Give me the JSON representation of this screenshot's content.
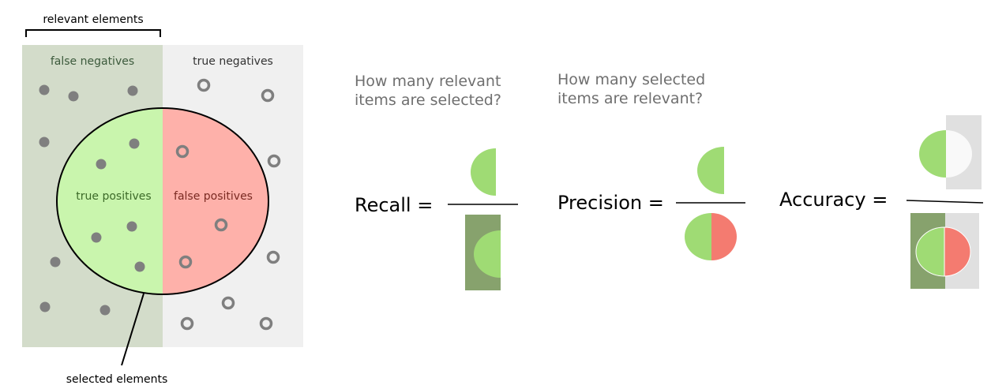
{
  "labels": {
    "relevant_elements": "relevant elements",
    "selected_elements": "selected elements",
    "false_negatives": "false negatives",
    "true_negatives": "true negatives",
    "true_positives": "true positives",
    "false_positives": "false positives"
  },
  "questions": {
    "recall_line1": "How many relevant",
    "recall_line2": "items are selected?",
    "precision_line1": "How many selected",
    "precision_line2": "items are relevant?"
  },
  "formulas": {
    "recall": "Recall =",
    "precision": "Precision =",
    "accuracy": "Accuracy ="
  },
  "colors": {
    "fn_region": "#d3dcca",
    "tn_region": "#f0f0f0",
    "tp": "#c9f5ad",
    "fp": "#feb1aa",
    "tp_icon": "#9fdb74",
    "fp_icon": "#f47b70",
    "fn_icon": "#87a26d",
    "tn_icon": "#e0e0e0",
    "dot": "#7f7f7f",
    "label_fn": "#3c5a3c",
    "label_tp": "#3c6a28",
    "label_fp": "#7a2a22"
  }
}
